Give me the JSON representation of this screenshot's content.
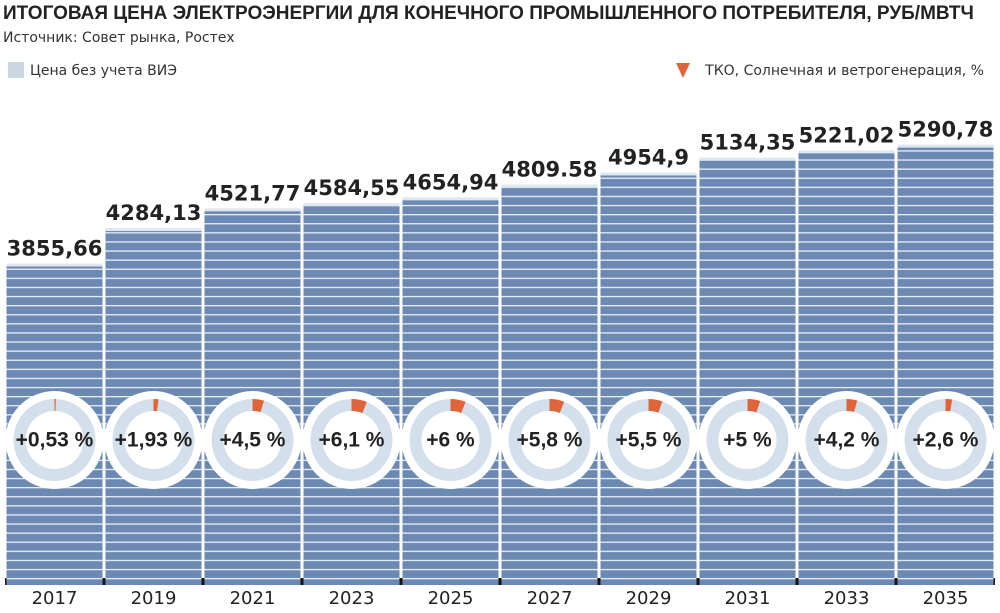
{
  "chart_data": {
    "type": "bar",
    "title": "ИТОГОВАЯ ЦЕНА ЭЛЕКТРОЭНЕРГИИ ДЛЯ КОНЕЧНОГО ПРОМЫШЛЕННОГО ПОТРЕБИТЕЛЯ, РУБ/МВТЧ",
    "subtitle": "Источник: Совет рынка, Ростех",
    "categories": [
      "2017",
      "2019",
      "2021",
      "2023",
      "2025",
      "2027",
      "2029",
      "2031",
      "2033",
      "2035"
    ],
    "ylim": [
      0,
      7000
    ],
    "series": [
      {
        "name": "Цена без учета ВИЭ",
        "type": "bar",
        "color": "#6b89b2",
        "values": [
          3855.66,
          4284.13,
          4521.77,
          4584.55,
          4654.94,
          4809.58,
          4954.9,
          5134.35,
          5221.02,
          5290.78
        ],
        "value_labels": [
          "3855,66",
          "4284,13",
          "4521,77",
          "4584,55",
          "4654,94",
          "4809.58",
          "4954,9",
          "5134,35",
          "5221,02",
          "5290,78"
        ]
      },
      {
        "name": "ТКО, Солнечная и ветрогенерация, %",
        "type": "donut",
        "color": "#e0643a",
        "values": [
          0.53,
          1.93,
          4.5,
          6.1,
          6,
          5.8,
          5.5,
          5,
          4.2,
          2.6
        ],
        "value_labels": [
          "+0,53 %",
          "+1,93 %",
          "+4,5 %",
          "+6,1 %",
          "+6 %",
          "+5,8 %",
          "+5,5 %",
          "+5 %",
          "+4,2 %",
          "+2,6 %"
        ]
      }
    ]
  }
}
